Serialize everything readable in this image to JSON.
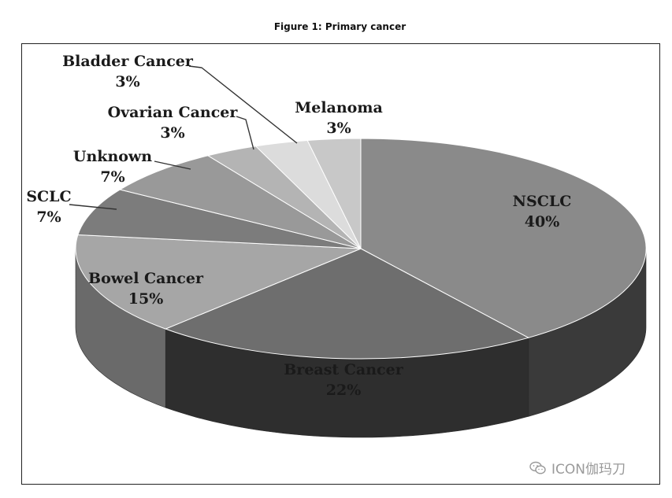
{
  "figure": {
    "title": "Figure 1: Primary cancer"
  },
  "chart_data": {
    "type": "pie",
    "style": "3d",
    "title": "Figure 1: Primary cancer",
    "slices": [
      {
        "label": "NSCLC",
        "value": 40,
        "value_text": "40%",
        "color": "#8a8a8a",
        "side": "#3a3a3a"
      },
      {
        "label": "Breast Cancer",
        "value": 22,
        "value_text": "22%",
        "color": "#6e6e6e",
        "side": "#2e2e2e"
      },
      {
        "label": "Bowel Cancer",
        "value": 15,
        "value_text": "15%",
        "color": "#a6a6a6",
        "side": "#6a6a6a"
      },
      {
        "label": "SCLC",
        "value": 7,
        "value_text": "7%",
        "color": "#7c7c7c",
        "side": "#4a4a4a"
      },
      {
        "label": "Unknown",
        "value": 7,
        "value_text": "7%",
        "color": "#999999",
        "side": "#5a5a5a"
      },
      {
        "label": "Ovarian Cancer",
        "value": 3,
        "value_text": "3%",
        "color": "#b4b4b4",
        "side": "#7a7a7a"
      },
      {
        "label": "Bladder Cancer",
        "value": 3,
        "value_text": "3%",
        "color": "#dcdcdc",
        "side": "#9a9a9a"
      },
      {
        "label": "Melanoma",
        "value": 3,
        "value_text": "3%",
        "color": "#c8c8c8",
        "side": "#8a8a8a"
      }
    ],
    "legend": "none",
    "data_labels": "category-and-percent"
  },
  "watermark": {
    "text": "ICON伽玛刀",
    "icon": "wechat-icon"
  }
}
